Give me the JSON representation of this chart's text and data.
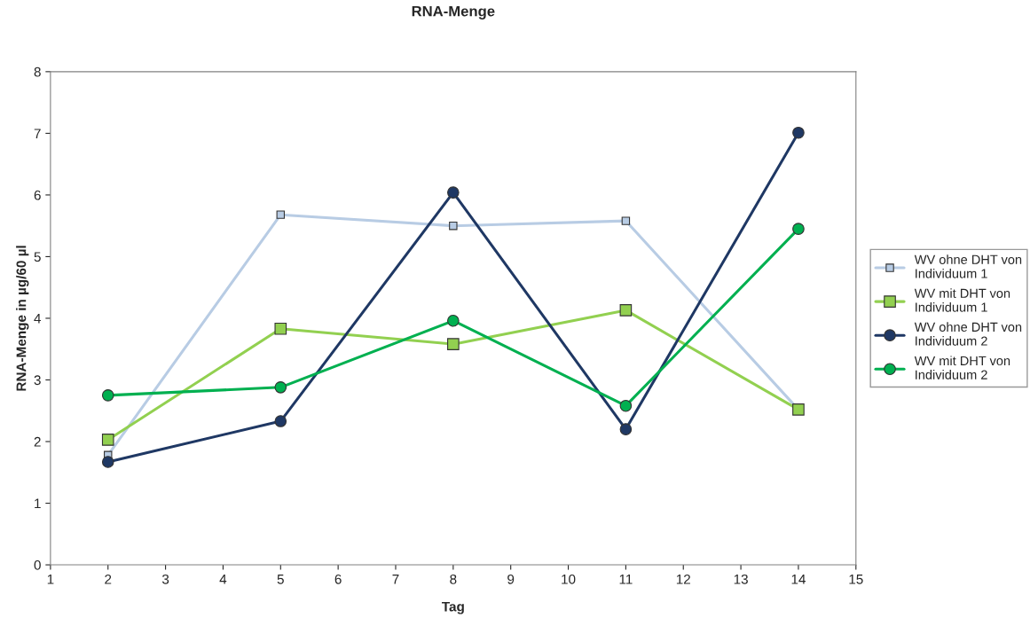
{
  "chart_data": {
    "type": "line",
    "title": "RNA-Menge",
    "xlabel": "Tag",
    "ylabel": "RNA-Menge in µg/60 µl",
    "x": [
      2,
      5,
      8,
      11,
      14
    ],
    "series": [
      {
        "name": "WV ohne DHT von Individuum 1",
        "color": "#b8cce4",
        "marker": "square",
        "values": [
          1.78,
          5.68,
          5.5,
          5.58,
          2.52
        ]
      },
      {
        "name": "WV mit DHT von Individuum 1",
        "color": "#92d050",
        "marker": "square",
        "values": [
          2.03,
          3.83,
          3.58,
          4.13,
          2.52
        ]
      },
      {
        "name": "WV ohne DHT von Individuum 2",
        "color": "#1f3864",
        "marker": "circle",
        "values": [
          1.67,
          2.33,
          6.04,
          2.2,
          7.01
        ]
      },
      {
        "name": "WV mit DHT von Individuum 2",
        "color": "#00b050",
        "marker": "circle",
        "values": [
          2.75,
          2.88,
          3.96,
          2.58,
          5.45
        ]
      }
    ],
    "xlim": [
      1,
      15
    ],
    "xticks": [
      1,
      2,
      3,
      4,
      5,
      6,
      7,
      8,
      9,
      10,
      11,
      12,
      13,
      14,
      15
    ],
    "ylim": [
      0,
      8
    ],
    "yticks": [
      0,
      1,
      2,
      3,
      4,
      5,
      6,
      7,
      8
    ],
    "grid": false,
    "legend": "right",
    "line_style": "solid"
  }
}
